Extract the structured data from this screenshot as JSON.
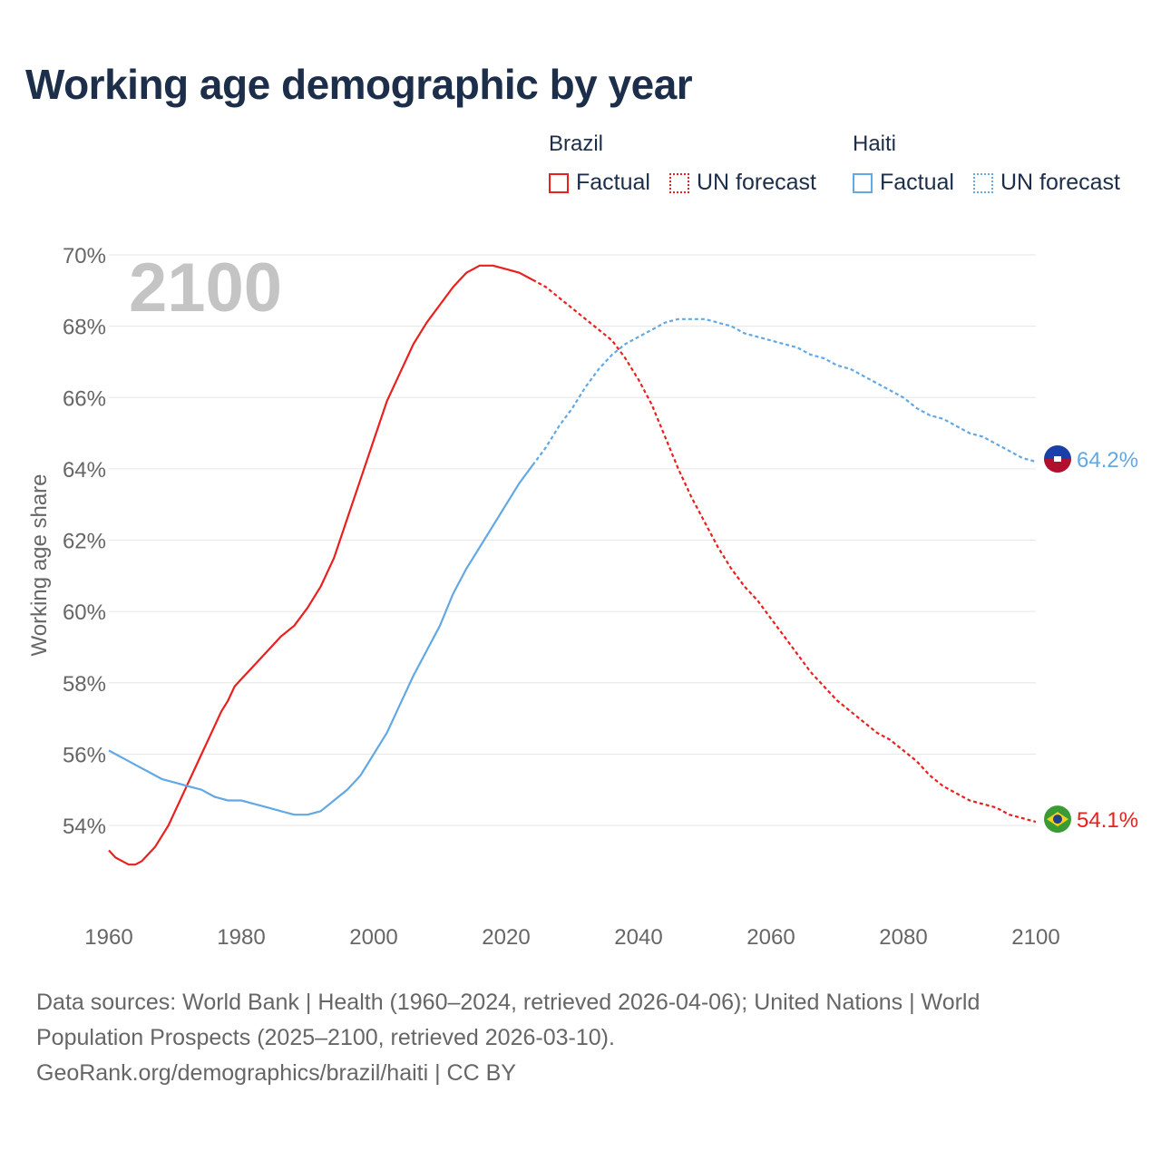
{
  "title": "Working age demographic by year",
  "legend": {
    "groups": [
      {
        "country": "Brazil",
        "factual_label": "Factual",
        "forecast_label": "UN forecast",
        "color": "#e8201e"
      },
      {
        "country": "Haiti",
        "factual_label": "Factual",
        "forecast_label": "UN forecast",
        "color": "#62a8e5"
      }
    ]
  },
  "footer": {
    "sources": "Data sources: World Bank | Health (1960–2024, retrieved 2026-04-06); United Nations | World Population Prospects (2025–2100, retrieved 2026-03-10).",
    "url": "GeoRank.org/demographics/brazil/haiti | CC BY"
  },
  "chart_data": {
    "type": "line",
    "title": "Working age demographic by year",
    "ylabel": "Working age share",
    "xlabel": "",
    "xlim": [
      1960,
      2100
    ],
    "ylim": [
      52,
      70
    ],
    "x_ticks": [
      1960,
      1980,
      2000,
      2020,
      2040,
      2060,
      2080,
      2100
    ],
    "x_tick_labels": [
      "1960",
      "1980",
      "2000",
      "2020",
      "2040",
      "2060",
      "2080",
      "2100"
    ],
    "y_ticks": [
      54,
      56,
      58,
      60,
      62,
      64,
      66,
      68,
      70
    ],
    "y_tick_labels": [
      "54%",
      "56%",
      "58%",
      "60%",
      "62%",
      "64%",
      "66%",
      "68%",
      "70%"
    ],
    "grid": true,
    "year_overlay": "2100",
    "factual_until": 2024,
    "series": [
      {
        "name": "Brazil",
        "color": "#e8201e",
        "end_label": "54.1%",
        "flag": "brazil-flag",
        "points": [
          [
            1960,
            53.3
          ],
          [
            1961,
            53.1
          ],
          [
            1962,
            53.0
          ],
          [
            1963,
            52.9
          ],
          [
            1964,
            52.9
          ],
          [
            1965,
            53.0
          ],
          [
            1966,
            53.2
          ],
          [
            1967,
            53.4
          ],
          [
            1968,
            53.7
          ],
          [
            1969,
            54.0
          ],
          [
            1970,
            54.4
          ],
          [
            1971,
            54.8
          ],
          [
            1972,
            55.2
          ],
          [
            1973,
            55.6
          ],
          [
            1974,
            56.0
          ],
          [
            1975,
            56.4
          ],
          [
            1976,
            56.8
          ],
          [
            1977,
            57.2
          ],
          [
            1978,
            57.5
          ],
          [
            1979,
            57.9
          ],
          [
            1980,
            58.1
          ],
          [
            1982,
            58.5
          ],
          [
            1984,
            58.9
          ],
          [
            1986,
            59.3
          ],
          [
            1988,
            59.6
          ],
          [
            1990,
            60.1
          ],
          [
            1992,
            60.7
          ],
          [
            1994,
            61.5
          ],
          [
            1996,
            62.6
          ],
          [
            1998,
            63.7
          ],
          [
            2000,
            64.8
          ],
          [
            2002,
            65.9
          ],
          [
            2004,
            66.7
          ],
          [
            2006,
            67.5
          ],
          [
            2008,
            68.1
          ],
          [
            2010,
            68.6
          ],
          [
            2012,
            69.1
          ],
          [
            2014,
            69.5
          ],
          [
            2016,
            69.7
          ],
          [
            2018,
            69.7
          ],
          [
            2020,
            69.6
          ],
          [
            2022,
            69.5
          ],
          [
            2024,
            69.3
          ],
          [
            2026,
            69.1
          ],
          [
            2028,
            68.8
          ],
          [
            2030,
            68.5
          ],
          [
            2032,
            68.2
          ],
          [
            2034,
            67.9
          ],
          [
            2036,
            67.6
          ],
          [
            2038,
            67.1
          ],
          [
            2040,
            66.5
          ],
          [
            2042,
            65.8
          ],
          [
            2044,
            64.9
          ],
          [
            2046,
            64.0
          ],
          [
            2048,
            63.2
          ],
          [
            2050,
            62.5
          ],
          [
            2052,
            61.8
          ],
          [
            2054,
            61.2
          ],
          [
            2056,
            60.7
          ],
          [
            2058,
            60.3
          ],
          [
            2060,
            59.8
          ],
          [
            2062,
            59.3
          ],
          [
            2064,
            58.8
          ],
          [
            2066,
            58.3
          ],
          [
            2068,
            57.9
          ],
          [
            2070,
            57.5
          ],
          [
            2072,
            57.2
          ],
          [
            2074,
            56.9
          ],
          [
            2076,
            56.6
          ],
          [
            2078,
            56.4
          ],
          [
            2080,
            56.1
          ],
          [
            2082,
            55.8
          ],
          [
            2084,
            55.4
          ],
          [
            2086,
            55.1
          ],
          [
            2088,
            54.9
          ],
          [
            2090,
            54.7
          ],
          [
            2092,
            54.6
          ],
          [
            2094,
            54.5
          ],
          [
            2096,
            54.3
          ],
          [
            2098,
            54.2
          ],
          [
            2100,
            54.1
          ]
        ]
      },
      {
        "name": "Haiti",
        "color": "#62a8e5",
        "end_label": "64.2%",
        "flag": "haiti-flag",
        "points": [
          [
            1960,
            56.1
          ],
          [
            1962,
            55.9
          ],
          [
            1964,
            55.7
          ],
          [
            1966,
            55.5
          ],
          [
            1968,
            55.3
          ],
          [
            1970,
            55.2
          ],
          [
            1972,
            55.1
          ],
          [
            1974,
            55.0
          ],
          [
            1976,
            54.8
          ],
          [
            1978,
            54.7
          ],
          [
            1980,
            54.7
          ],
          [
            1982,
            54.6
          ],
          [
            1984,
            54.5
          ],
          [
            1986,
            54.4
          ],
          [
            1988,
            54.3
          ],
          [
            1990,
            54.3
          ],
          [
            1992,
            54.4
          ],
          [
            1994,
            54.7
          ],
          [
            1996,
            55.0
          ],
          [
            1998,
            55.4
          ],
          [
            2000,
            56.0
          ],
          [
            2002,
            56.6
          ],
          [
            2004,
            57.4
          ],
          [
            2006,
            58.2
          ],
          [
            2008,
            58.9
          ],
          [
            2010,
            59.6
          ],
          [
            2012,
            60.5
          ],
          [
            2014,
            61.2
          ],
          [
            2016,
            61.8
          ],
          [
            2018,
            62.4
          ],
          [
            2020,
            63.0
          ],
          [
            2022,
            63.6
          ],
          [
            2024,
            64.1
          ],
          [
            2026,
            64.6
          ],
          [
            2028,
            65.2
          ],
          [
            2030,
            65.7
          ],
          [
            2032,
            66.3
          ],
          [
            2034,
            66.8
          ],
          [
            2036,
            67.2
          ],
          [
            2038,
            67.5
          ],
          [
            2040,
            67.7
          ],
          [
            2042,
            67.9
          ],
          [
            2044,
            68.1
          ],
          [
            2046,
            68.2
          ],
          [
            2048,
            68.2
          ],
          [
            2050,
            68.2
          ],
          [
            2052,
            68.1
          ],
          [
            2054,
            68.0
          ],
          [
            2056,
            67.8
          ],
          [
            2058,
            67.7
          ],
          [
            2060,
            67.6
          ],
          [
            2062,
            67.5
          ],
          [
            2064,
            67.4
          ],
          [
            2066,
            67.2
          ],
          [
            2068,
            67.1
          ],
          [
            2070,
            66.9
          ],
          [
            2072,
            66.8
          ],
          [
            2074,
            66.6
          ],
          [
            2076,
            66.4
          ],
          [
            2078,
            66.2
          ],
          [
            2080,
            66.0
          ],
          [
            2082,
            65.7
          ],
          [
            2084,
            65.5
          ],
          [
            2086,
            65.4
          ],
          [
            2088,
            65.2
          ],
          [
            2090,
            65.0
          ],
          [
            2092,
            64.9
          ],
          [
            2094,
            64.7
          ],
          [
            2096,
            64.5
          ],
          [
            2098,
            64.3
          ],
          [
            2100,
            64.2
          ]
        ]
      }
    ]
  }
}
